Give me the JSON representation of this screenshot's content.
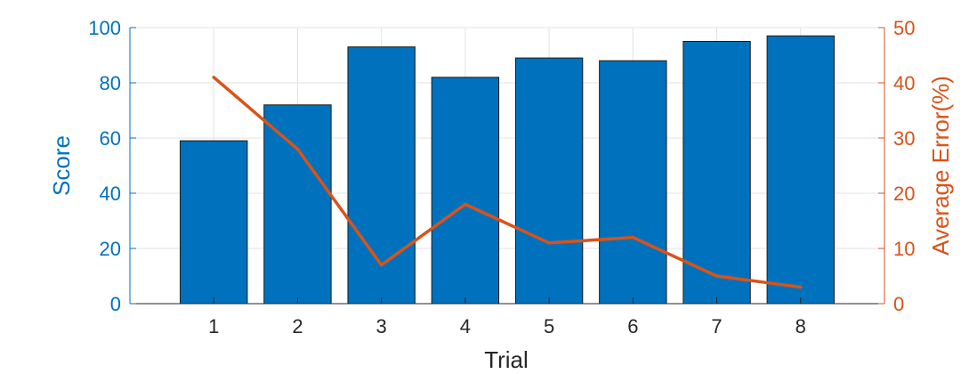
{
  "chart_data": {
    "type": "bar",
    "xlabel": "Trial",
    "categories": [
      "1",
      "2",
      "3",
      "4",
      "5",
      "6",
      "7",
      "8"
    ],
    "xlim": [
      0,
      9
    ],
    "grid": true,
    "series": [
      {
        "axis": "left",
        "type": "bar",
        "color": "#0072BD",
        "values": [
          59,
          72,
          93,
          82,
          89,
          88,
          95,
          97
        ]
      },
      {
        "axis": "right",
        "type": "line",
        "color": "#D95319",
        "values": [
          41,
          28,
          7,
          18,
          11,
          12,
          5,
          3
        ]
      }
    ],
    "ylabel_left": "Score",
    "ylim_left": [
      0,
      100
    ],
    "yticks_left": [
      "0",
      "20",
      "40",
      "60",
      "80",
      "100"
    ],
    "ylabel_right": "Average Error(%)",
    "ylim_right": [
      0,
      50
    ],
    "yticks_right": [
      "0",
      "10",
      "20",
      "30",
      "40",
      "50"
    ]
  }
}
